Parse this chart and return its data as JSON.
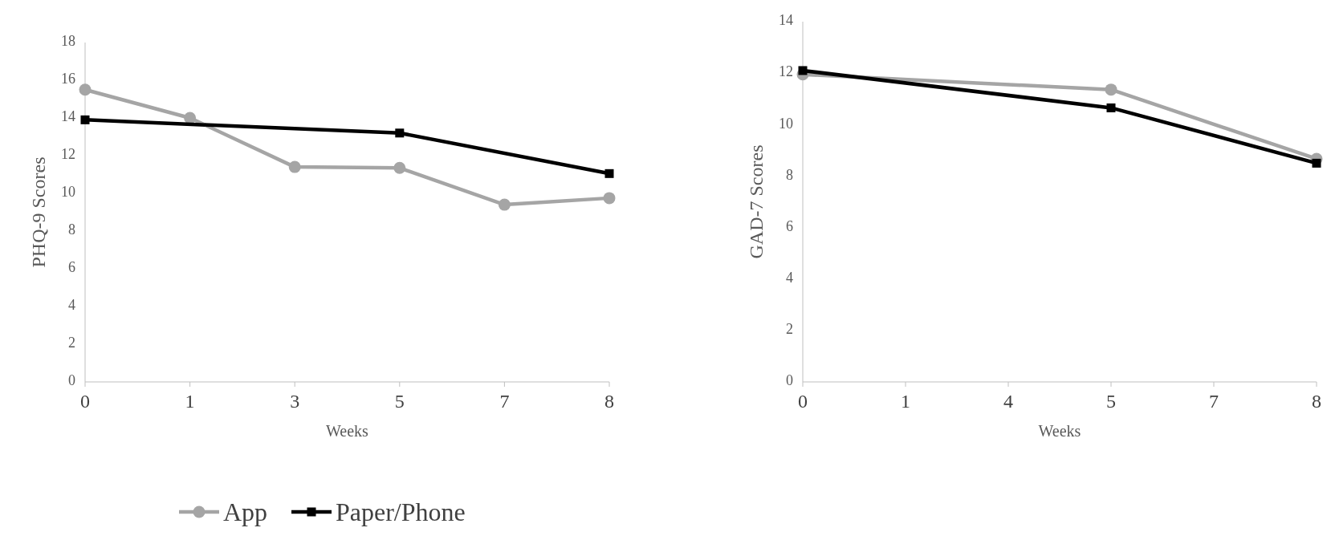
{
  "chart_data": [
    {
      "type": "line",
      "categories": [
        "0",
        "1",
        "3",
        "5",
        "7",
        "8"
      ],
      "xlabel": "Weeks",
      "ylabel": "PHQ-9 Scores",
      "ylim": [
        0,
        18
      ],
      "yticks": [
        0,
        2,
        4,
        6,
        8,
        10,
        12,
        14,
        16,
        18
      ],
      "grid": false,
      "legend": "bottom",
      "line_style": "solid",
      "series": [
        {
          "name": "App",
          "color": "#a5a5a5",
          "marker": "circle",
          "values": [
            15.5,
            14.0,
            11.4,
            11.35,
            9.4,
            9.75
          ]
        },
        {
          "name": "Paper/Phone",
          "color": "#000000",
          "marker": "square",
          "values": [
            13.9,
            null,
            null,
            13.2,
            null,
            11.05
          ]
        }
      ]
    },
    {
      "type": "line",
      "categories": [
        "0",
        "1",
        "4",
        "5",
        "7",
        "8"
      ],
      "xlabel": "Weeks",
      "ylabel": "GAD-7 Scores",
      "ylim": [
        0,
        14
      ],
      "yticks": [
        0,
        2,
        4,
        6,
        8,
        10,
        12,
        14
      ],
      "grid": false,
      "line_style": "solid",
      "series": [
        {
          "color": "#a5a5a5",
          "marker": "circle",
          "values": [
            11.95,
            null,
            null,
            11.36,
            null,
            8.67
          ]
        },
        {
          "color": "#000000",
          "marker": "square",
          "values": [
            12.1,
            null,
            null,
            10.65,
            null,
            8.5
          ]
        }
      ]
    }
  ]
}
